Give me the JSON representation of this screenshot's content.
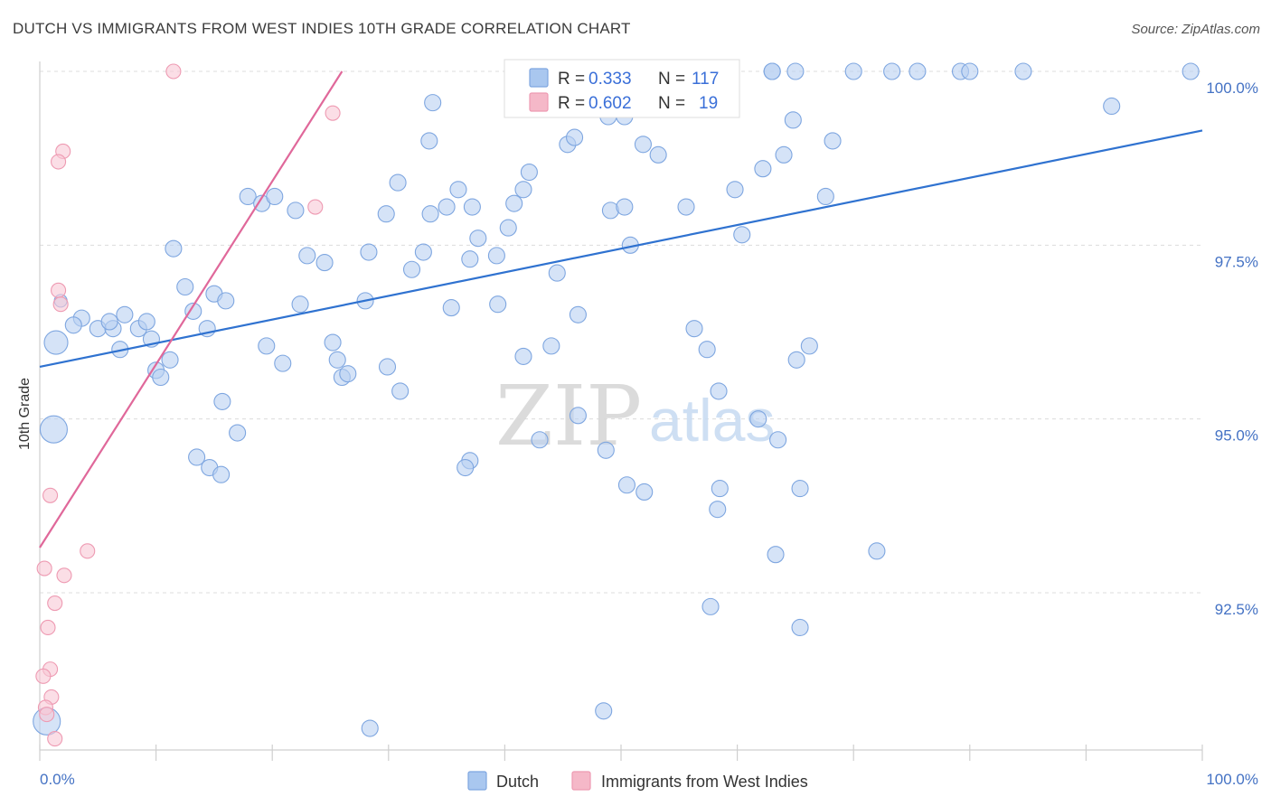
{
  "chart_data": {
    "type": "scatter",
    "title": "DUTCH VS IMMIGRANTS FROM WEST INDIES 10TH GRADE CORRELATION CHART",
    "source": "Source: ZipAtlas.com",
    "ylabel": "10th Grade",
    "xlabel": "",
    "xlim": [
      0,
      100
    ],
    "ylim": [
      90.1,
      100.4
    ],
    "x_tick_labels": [
      "0.0%",
      "100.0%"
    ],
    "y_ticks": [
      {
        "value": 100.0,
        "label": "100.0%"
      },
      {
        "value": 97.5,
        "label": "97.5%"
      },
      {
        "value": 95.0,
        "label": "95.0%"
      },
      {
        "value": 92.5,
        "label": "92.5%"
      }
    ],
    "legend": [
      {
        "r_label": "R =",
        "r": "0.333",
        "n_label": "N =",
        "n": "117",
        "color": "#a9c7ef"
      },
      {
        "r_label": "R =",
        "r": "0.602",
        "n_label": "N =",
        "n": "19",
        "color": "#f5b8c8"
      }
    ],
    "watermark": {
      "zip": "ZIP",
      "atlas": "atlas"
    },
    "series": [
      {
        "name": "Dutch",
        "color": "#7ea6e0",
        "fill": "#b9d1f1",
        "line_color": "#2f72d0",
        "trend": {
          "x": [
            0,
            100
          ],
          "y": [
            95.75,
            99.15
          ]
        },
        "points": [
          [
            1.4,
            96.1,
            26
          ],
          [
            1.2,
            94.85,
            30
          ],
          [
            0.6,
            90.65,
            30
          ],
          [
            1.8,
            96.7,
            14
          ],
          [
            3.6,
            96.45,
            18
          ],
          [
            2.9,
            96.35,
            18
          ],
          [
            5.0,
            96.3,
            18
          ],
          [
            6.3,
            96.3,
            18
          ],
          [
            6.9,
            96.0,
            18
          ],
          [
            8.5,
            96.3,
            18
          ],
          [
            6.0,
            96.4,
            18
          ],
          [
            7.3,
            96.5,
            18
          ],
          [
            9.2,
            96.4,
            18
          ],
          [
            9.6,
            96.15,
            18
          ],
          [
            10.0,
            95.7,
            18
          ],
          [
            11.2,
            95.85,
            18
          ],
          [
            10.4,
            95.6,
            18
          ],
          [
            12.5,
            96.9,
            18
          ],
          [
            11.5,
            97.45,
            18
          ],
          [
            14.4,
            96.3,
            18
          ],
          [
            13.2,
            96.55,
            18
          ],
          [
            15.0,
            96.8,
            18
          ],
          [
            16.0,
            96.7,
            18
          ],
          [
            15.7,
            95.25,
            18
          ],
          [
            17.0,
            94.8,
            18
          ],
          [
            13.5,
            94.45,
            18
          ],
          [
            14.6,
            94.3,
            18
          ],
          [
            15.6,
            94.2,
            18
          ],
          [
            17.9,
            98.2,
            18
          ],
          [
            19.1,
            98.1,
            18
          ],
          [
            20.2,
            98.2,
            18
          ],
          [
            22.0,
            98.0,
            18
          ],
          [
            23.0,
            97.35,
            18
          ],
          [
            24.5,
            97.25,
            18
          ],
          [
            22.4,
            96.65,
            18
          ],
          [
            25.2,
            96.1,
            18
          ],
          [
            19.5,
            96.05,
            18
          ],
          [
            20.9,
            95.8,
            18
          ],
          [
            26.0,
            95.6,
            18
          ],
          [
            25.6,
            95.85,
            18
          ],
          [
            26.5,
            95.65,
            18
          ],
          [
            28.0,
            96.7,
            18
          ],
          [
            28.3,
            97.4,
            18
          ],
          [
            29.8,
            97.95,
            18
          ],
          [
            30.8,
            98.4,
            18
          ],
          [
            32.0,
            97.15,
            18
          ],
          [
            29.9,
            95.75,
            18
          ],
          [
            31.0,
            95.4,
            18
          ],
          [
            33.0,
            97.4,
            18
          ],
          [
            33.6,
            97.95,
            18
          ],
          [
            35.4,
            96.6,
            18
          ],
          [
            35.0,
            98.05,
            18
          ],
          [
            36.0,
            98.3,
            18
          ],
          [
            37.2,
            98.05,
            18
          ],
          [
            37.0,
            97.3,
            18
          ],
          [
            37.7,
            97.6,
            18
          ],
          [
            39.3,
            97.35,
            18
          ],
          [
            39.4,
            96.65,
            18
          ],
          [
            40.3,
            97.75,
            18
          ],
          [
            40.8,
            98.1,
            18
          ],
          [
            41.6,
            98.3,
            18
          ],
          [
            42.1,
            98.55,
            18
          ],
          [
            41.6,
            95.9,
            18
          ],
          [
            44.0,
            96.05,
            18
          ],
          [
            44.5,
            97.1,
            18
          ],
          [
            46.3,
            96.5,
            18
          ],
          [
            33.5,
            99.0,
            18
          ],
          [
            33.8,
            99.55,
            18
          ],
          [
            42.8,
            99.6,
            18
          ],
          [
            45.4,
            98.95,
            18
          ],
          [
            46.0,
            99.05,
            18
          ],
          [
            47.5,
            100.0,
            18
          ],
          [
            49.1,
            98.0,
            18
          ],
          [
            50.3,
            98.05,
            18
          ],
          [
            50.8,
            97.5,
            18
          ],
          [
            48.9,
            99.35,
            18
          ],
          [
            50.3,
            99.35,
            18
          ],
          [
            51.9,
            98.95,
            18
          ],
          [
            53.2,
            98.8,
            18
          ],
          [
            55.6,
            98.05,
            18
          ],
          [
            56.3,
            96.3,
            18
          ],
          [
            57.4,
            96.0,
            18
          ],
          [
            58.4,
            95.4,
            18
          ],
          [
            59.8,
            98.3,
            18
          ],
          [
            60.4,
            97.65,
            18
          ],
          [
            62.2,
            98.6,
            18
          ],
          [
            63.0,
            100.0,
            18
          ],
          [
            64.0,
            98.8,
            18
          ],
          [
            64.8,
            99.3,
            18
          ],
          [
            65.0,
            100.0,
            18
          ],
          [
            65.1,
            95.85,
            18
          ],
          [
            66.2,
            96.05,
            18
          ],
          [
            68.2,
            99.0,
            18
          ],
          [
            67.6,
            98.2,
            18
          ],
          [
            70.0,
            100.0,
            18
          ],
          [
            73.3,
            100.0,
            18
          ],
          [
            75.5,
            100.0,
            18
          ],
          [
            79.2,
            100.0,
            18
          ],
          [
            80.0,
            100.0,
            18
          ],
          [
            84.6,
            100.0,
            18
          ],
          [
            92.2,
            99.5,
            18
          ],
          [
            99.0,
            100.0,
            18
          ],
          [
            63.0,
            100.0,
            18
          ],
          [
            43.0,
            94.7,
            18
          ],
          [
            37.0,
            94.4,
            18
          ],
          [
            36.6,
            94.3,
            18
          ],
          [
            46.3,
            95.05,
            18
          ],
          [
            48.7,
            94.55,
            18
          ],
          [
            50.5,
            94.05,
            18
          ],
          [
            52.0,
            93.95,
            18
          ],
          [
            58.5,
            94.0,
            18
          ],
          [
            61.8,
            95.0,
            18
          ],
          [
            63.5,
            94.7,
            18
          ],
          [
            65.4,
            94.0,
            18
          ],
          [
            58.3,
            93.7,
            18
          ],
          [
            63.3,
            93.05,
            18
          ],
          [
            72.0,
            93.1,
            18
          ],
          [
            57.7,
            92.3,
            18
          ],
          [
            65.4,
            92.0,
            18
          ],
          [
            28.4,
            90.55,
            18
          ],
          [
            48.5,
            90.8,
            18
          ]
        ]
      },
      {
        "name": "Immigrants from West Indies",
        "color": "#ee9ab2",
        "fill": "#f8c8d6",
        "line_color": "#e0689a",
        "trend": {
          "x": [
            0,
            26
          ],
          "y": [
            93.15,
            100.0
          ]
        },
        "points": [
          [
            11.5,
            100.0,
            16
          ],
          [
            25.2,
            99.4,
            16
          ],
          [
            2.0,
            98.85,
            16
          ],
          [
            1.6,
            98.7,
            16
          ],
          [
            23.7,
            98.05,
            16
          ],
          [
            1.6,
            96.85,
            16
          ],
          [
            1.8,
            96.65,
            16
          ],
          [
            0.9,
            93.9,
            16
          ],
          [
            4.1,
            93.1,
            16
          ],
          [
            0.4,
            92.85,
            16
          ],
          [
            2.1,
            92.75,
            16
          ],
          [
            1.3,
            92.35,
            16
          ],
          [
            0.7,
            92.0,
            16
          ],
          [
            0.9,
            91.4,
            16
          ],
          [
            0.3,
            91.3,
            16
          ],
          [
            1.0,
            91.0,
            16
          ],
          [
            0.5,
            90.85,
            16
          ],
          [
            0.6,
            90.75,
            16
          ],
          [
            1.3,
            90.4,
            16
          ]
        ]
      }
    ]
  }
}
